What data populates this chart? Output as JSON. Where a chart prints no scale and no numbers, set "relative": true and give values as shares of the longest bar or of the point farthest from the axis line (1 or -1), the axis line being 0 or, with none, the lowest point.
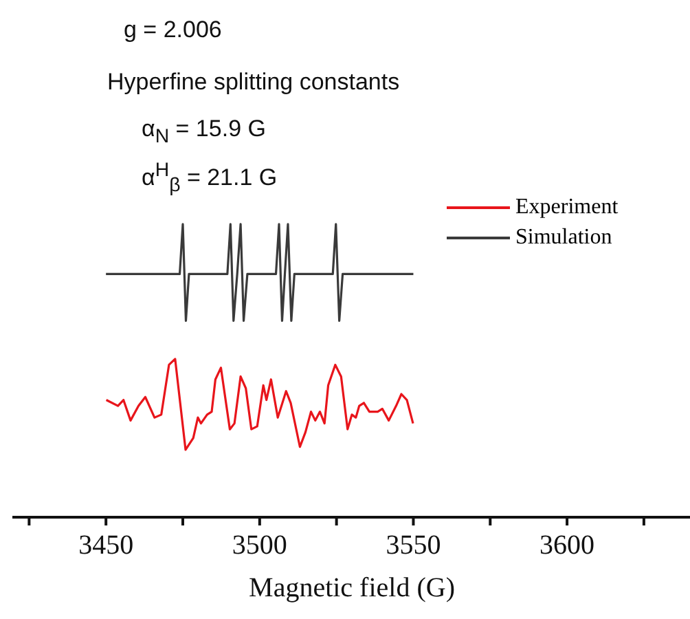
{
  "chart_data": {
    "type": "line",
    "relative": true,
    "xlabel": "Magnetic field (G)",
    "xlim": [
      3420,
      3640
    ],
    "xticks": [
      {
        "value": 3425,
        "label": null
      },
      3450,
      {
        "value": 3475,
        "label": null
      },
      3500,
      {
        "value": 3525,
        "label": null
      },
      3550,
      {
        "value": 3575,
        "label": null
      },
      3600,
      {
        "value": 3625,
        "label": null
      }
    ],
    "tick_labels": "x",
    "grid": false,
    "legend": "top right",
    "marker": "none",
    "line_style": "solid",
    "annotations": [
      "g = 2.006",
      "Hyperfine splitting constants",
      "α$_{N}$ = 15.9 G",
      "α$^{H}$$_{β}$ = 21.1 G"
    ],
    "series": [
      {
        "name": "Experiment",
        "color": "#e8151b",
        "x": [
          3450.1,
          3453.9,
          3455.7,
          3458.0,
          3460.6,
          3462.8,
          3465.8,
          3468.0,
          3470.5,
          3472.5,
          3475.9,
          3478.4,
          3479.9,
          3480.9,
          3482.9,
          3484.4,
          3485.6,
          3487.4,
          3490.3,
          3491.8,
          3493.8,
          3495.5,
          3497.3,
          3499.2,
          3501.2,
          3502.2,
          3503.7,
          3505.9,
          3508.6,
          3510.1,
          3513.1,
          3514.9,
          3516.7,
          3518.1,
          3519.6,
          3521.1,
          3522.3,
          3524.6,
          3526.5,
          3528.6,
          3530.0,
          3531.3,
          3532.4,
          3533.9,
          3535.7,
          3538.4,
          3539.9,
          3542.0,
          3544.4,
          3546.1,
          3547.9,
          3549.9
        ],
        "values": [
          0.4,
          0.38,
          0.4,
          0.33,
          0.38,
          0.41,
          0.34,
          0.35,
          0.52,
          0.54,
          0.23,
          0.27,
          0.34,
          0.32,
          0.35,
          0.36,
          0.47,
          0.51,
          0.3,
          0.32,
          0.48,
          0.44,
          0.3,
          0.31,
          0.45,
          0.4,
          0.47,
          0.34,
          0.43,
          0.39,
          0.24,
          0.29,
          0.36,
          0.33,
          0.36,
          0.32,
          0.45,
          0.52,
          0.48,
          0.3,
          0.35,
          0.34,
          0.38,
          0.39,
          0.36,
          0.36,
          0.37,
          0.33,
          0.38,
          0.42,
          0.4,
          0.32
        ]
      },
      {
        "name": "Simulation",
        "color": "#3a3a3a",
        "x": [
          3450,
          3474,
          3475,
          3476,
          3477,
          3489.5,
          3490.5,
          3491.5,
          3492.7,
          3493.8,
          3494.8,
          3496,
          3505.3,
          3506.3,
          3507.3,
          3508.2,
          3509.2,
          3510.3,
          3511.3,
          3523.8,
          3524.8,
          3525.9,
          3527,
          3550
        ],
        "values": [
          0.83,
          0.83,
          1,
          0.67,
          0.83,
          0.83,
          1,
          0.67,
          0.83,
          1,
          0.67,
          0.83,
          0.83,
          1,
          0.67,
          0.83,
          1,
          0.67,
          0.83,
          0.83,
          1,
          0.67,
          0.83,
          0.83
        ]
      }
    ]
  }
}
